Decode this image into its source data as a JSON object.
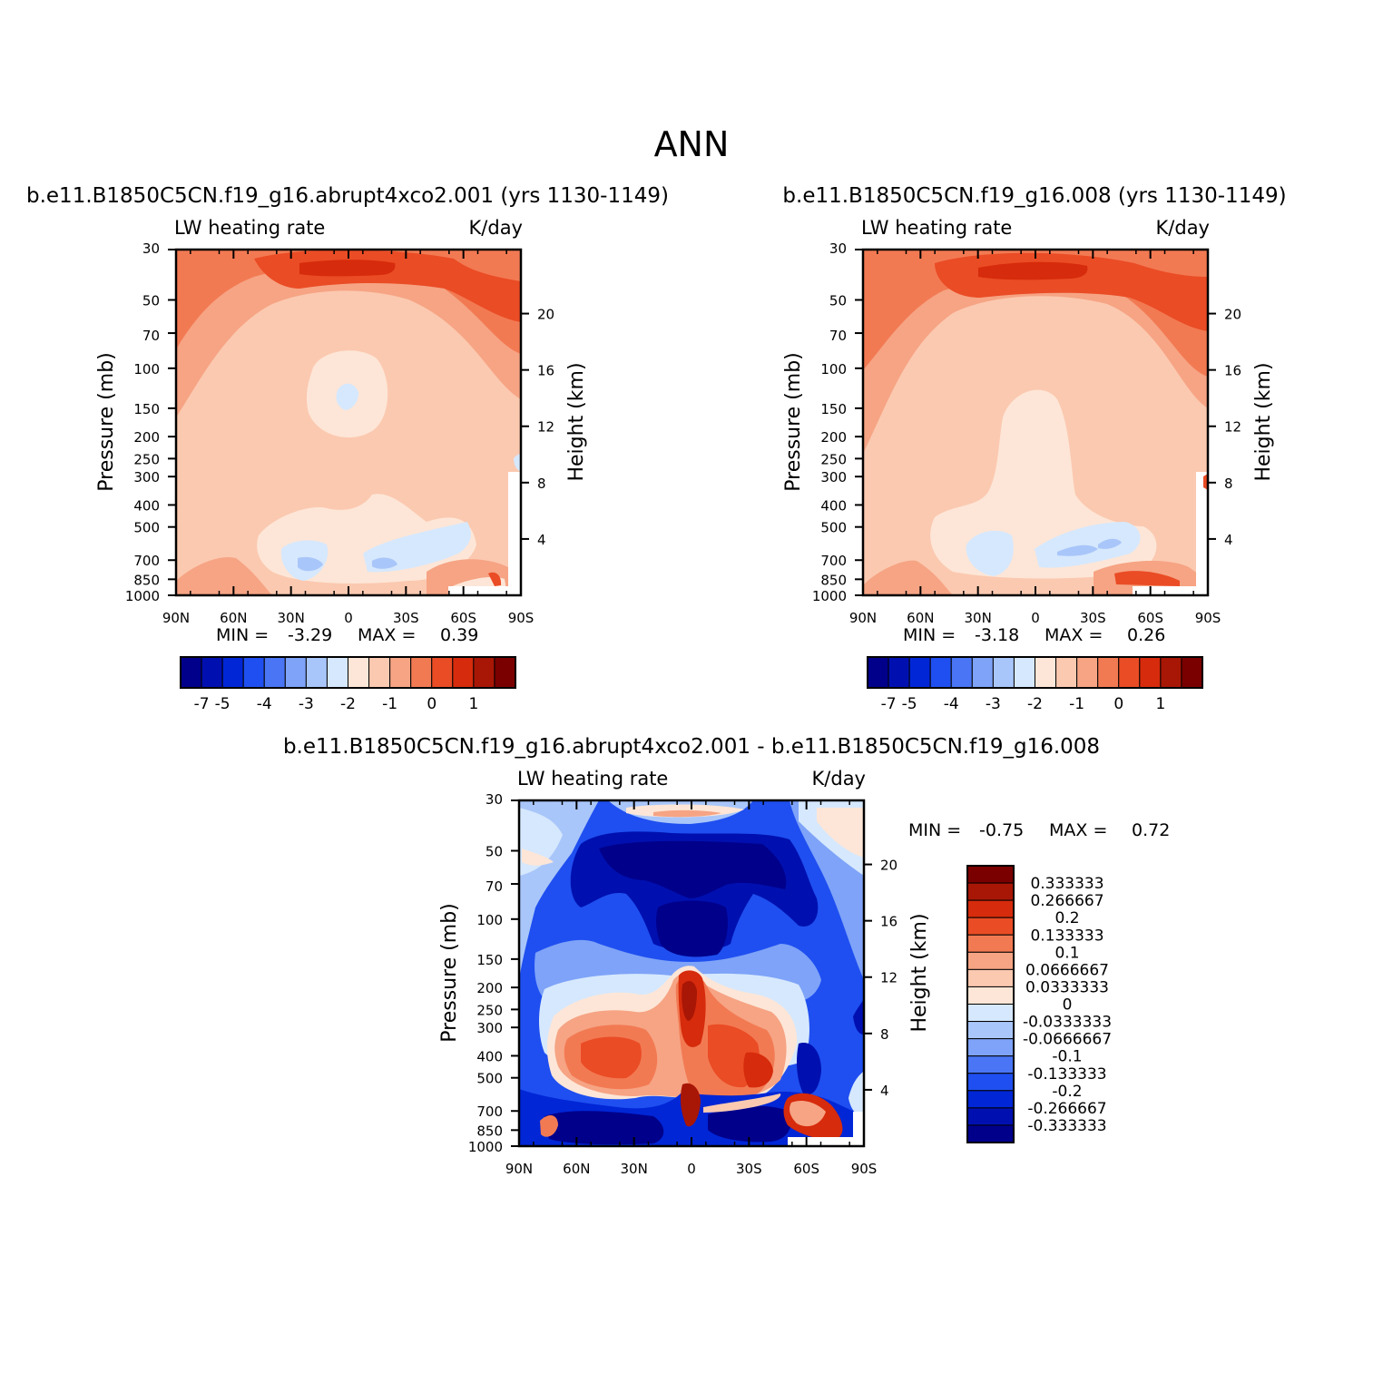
{
  "page_title": "ANN",
  "colors": {
    "scale": [
      "#00008b",
      "#0010b0",
      "#0026d6",
      "#1f4ff0",
      "#4a76f5",
      "#7ea3f8",
      "#a9c6fa",
      "#d6e8fd",
      "#fde6d7",
      "#fbc9b0",
      "#f6a484",
      "#f27a53",
      "#ea4c25",
      "#d62b0c",
      "#a81606",
      "#7a0000"
    ],
    "axis": "#000000",
    "background": "#ffffff"
  },
  "chart_data": [
    {
      "type": "contour",
      "case": "b.e11.B1850C5CN.f19_g16.abrupt4xco2.001  (yrs 1130-1149)",
      "variable": "LW  heating  rate",
      "units": "K/day",
      "ylabel": "Pressure  (mb)",
      "ylabel_right": "Height  (km)",
      "x_ticks": [
        "90N",
        "60N",
        "30N",
        "0",
        "30S",
        "60S",
        "90S"
      ],
      "y_ticks": [
        "30",
        "50",
        "70",
        "100",
        "150",
        "200",
        "250",
        "300",
        "400",
        "500",
        "700",
        "850",
        "1000"
      ],
      "height_ticks": [
        "20",
        "16",
        "12",
        "8",
        "4"
      ],
      "min_label": "MIN  =",
      "min_value": "-3.29",
      "max_label": "MAX  =",
      "max_value": "0.39",
      "colorbar_labels": [
        "-7",
        "-5",
        "-4",
        "-3",
        "-2",
        "-1",
        "0",
        "1"
      ]
    },
    {
      "type": "contour",
      "case": "b.e11.B1850C5CN.f19_g16.008  (yrs 1130-1149)",
      "variable": "LW  heating  rate",
      "units": "K/day",
      "ylabel": "Pressure  (mb)",
      "ylabel_right": "Height  (km)",
      "x_ticks": [
        "90N",
        "60N",
        "30N",
        "0",
        "30S",
        "60S",
        "90S"
      ],
      "y_ticks": [
        "30",
        "50",
        "70",
        "100",
        "150",
        "200",
        "250",
        "300",
        "400",
        "500",
        "700",
        "850",
        "1000"
      ],
      "height_ticks": [
        "20",
        "16",
        "12",
        "8",
        "4"
      ],
      "min_label": "MIN  =",
      "min_value": "-3.18",
      "max_label": "MAX  =",
      "max_value": "0.26",
      "colorbar_labels": [
        "-7",
        "-5",
        "-4",
        "-3",
        "-2",
        "-1",
        "0",
        "1"
      ]
    },
    {
      "type": "contour",
      "case": "b.e11.B1850C5CN.f19_g16.abrupt4xco2.001  -  b.e11.B1850C5CN.f19_g16.008",
      "variable": "LW  heating  rate",
      "units": "K/day",
      "ylabel": "Pressure  (mb)",
      "ylabel_right": "Height  (km)",
      "x_ticks": [
        "90N",
        "60N",
        "30N",
        "0",
        "30S",
        "60S",
        "90S"
      ],
      "y_ticks": [
        "30",
        "50",
        "70",
        "100",
        "150",
        "200",
        "250",
        "300",
        "400",
        "500",
        "700",
        "850",
        "1000"
      ],
      "height_ticks": [
        "20",
        "16",
        "12",
        "8",
        "4"
      ],
      "min_label": "MIN  =",
      "min_value": "-0.75",
      "max_label": "MAX  =",
      "max_value": "0.72",
      "colorbar_labels": [
        "0.333333",
        "0.266667",
        "0.2",
        "0.133333",
        "0.1",
        "0.0666667",
        "0.0333333",
        "0",
        "-0.0333333",
        "-0.0666667",
        "-0.1",
        "-0.133333",
        "-0.2",
        "-0.266667",
        "-0.333333"
      ]
    }
  ]
}
